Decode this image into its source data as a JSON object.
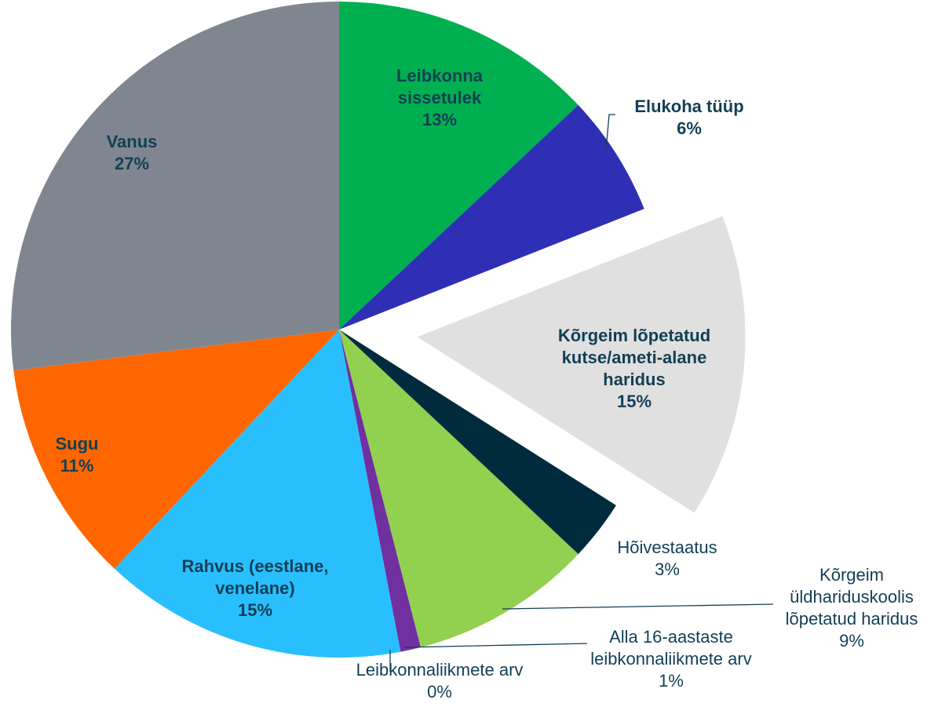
{
  "chart_data": {
    "type": "pie",
    "categories": [
      "Leibkonna sissetulek",
      "Elukoha tüüp",
      "Kõrgeim lõpetatud kutse/ameti-alane haridus",
      "Hõivestaatus",
      "Kõrgeim üldhariduskoolis lõpetatud haridus",
      "Alla 16-aastaste leibkonnaliikmete arv",
      "Leibkonnaliikmete arv",
      "Rahvus (eestlane, venelane)",
      "Sugu",
      "Vanus"
    ],
    "values": [
      13,
      6,
      15,
      3,
      9,
      1,
      0,
      15,
      11,
      27
    ],
    "value_labels": [
      "13%",
      "6%",
      "15%",
      "3%",
      "9%",
      "1%",
      "0%",
      "15%",
      "11%",
      "27%"
    ],
    "colors": [
      "#00b050",
      "#2f2fb5",
      "#e0e0e0",
      "#002b3d",
      "#92d050",
      "#7030a0",
      "#ff0000",
      "#29bfff",
      "#ff6600",
      "#80868f"
    ],
    "explode": [
      false,
      false,
      true,
      false,
      false,
      false,
      false,
      false,
      false,
      false
    ]
  }
}
